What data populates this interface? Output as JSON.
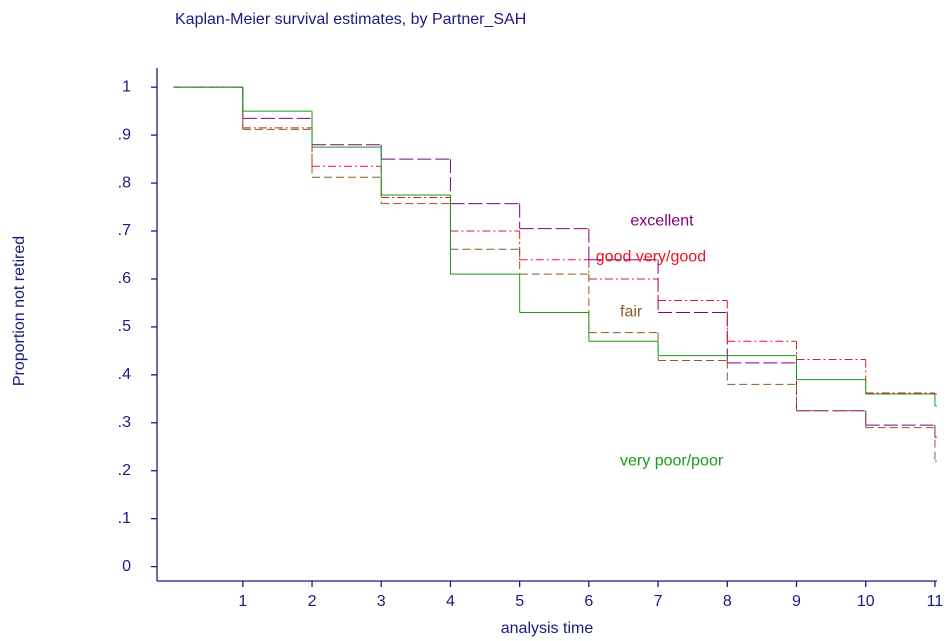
{
  "chart_data": {
    "type": "step",
    "title": "Kaplan-Meier survival estimates, by Partner_SAH",
    "x_label": "analysis time",
    "y_label": "Proportion not retired",
    "x": [
      0,
      1,
      2,
      3,
      4,
      5,
      6,
      7,
      8,
      9,
      10,
      11
    ],
    "series": [
      {
        "name": "excellent",
        "color": "#800080",
        "style": "longdash",
        "values": [
          1,
          0.935,
          0.88,
          0.85,
          0.757,
          0.705,
          0.64,
          0.53,
          0.425,
          0.325,
          0.295,
          0.27
        ]
      },
      {
        "name": "good very/good",
        "color": "#e8141e",
        "style": "dashdot",
        "values": [
          1,
          0.915,
          0.835,
          0.77,
          0.7,
          0.64,
          0.6,
          0.555,
          0.47,
          0.432,
          0.362,
          0.36
        ]
      },
      {
        "name": "fair",
        "color": "#8b5a2b",
        "style": "dash",
        "values": [
          1,
          0.912,
          0.812,
          0.757,
          0.662,
          0.61,
          0.488,
          0.43,
          0.38,
          0.325,
          0.29,
          0.22
        ]
      },
      {
        "name": "very poor/poor",
        "color": "#1a9a1a",
        "style": "solid",
        "values": [
          1,
          0.95,
          0.875,
          0.775,
          0.61,
          0.53,
          0.47,
          0.44,
          0.44,
          0.39,
          0.36,
          0.335
        ]
      }
    ],
    "xlim": [
      -0.24,
      11.03
    ],
    "ylim": [
      -0.03,
      1.04
    ],
    "xticks": [
      1,
      2,
      3,
      4,
      5,
      6,
      7,
      8,
      9,
      10,
      11
    ],
    "yticks": [
      0,
      {
        "value": 0.1,
        "label": ".1"
      },
      {
        "value": 0.2,
        "label": ".2"
      },
      {
        "value": 0.3,
        "label": ".3"
      },
      {
        "value": 0.4,
        "label": ".4"
      },
      {
        "value": 0.5,
        "label": ".5"
      },
      {
        "value": 0.6,
        "label": ".6"
      },
      {
        "value": 0.7,
        "label": ".7"
      },
      {
        "value": 0.8,
        "label": ".8"
      },
      {
        "value": 0.9,
        "label": ".9"
      },
      1
    ],
    "grid": false
  }
}
